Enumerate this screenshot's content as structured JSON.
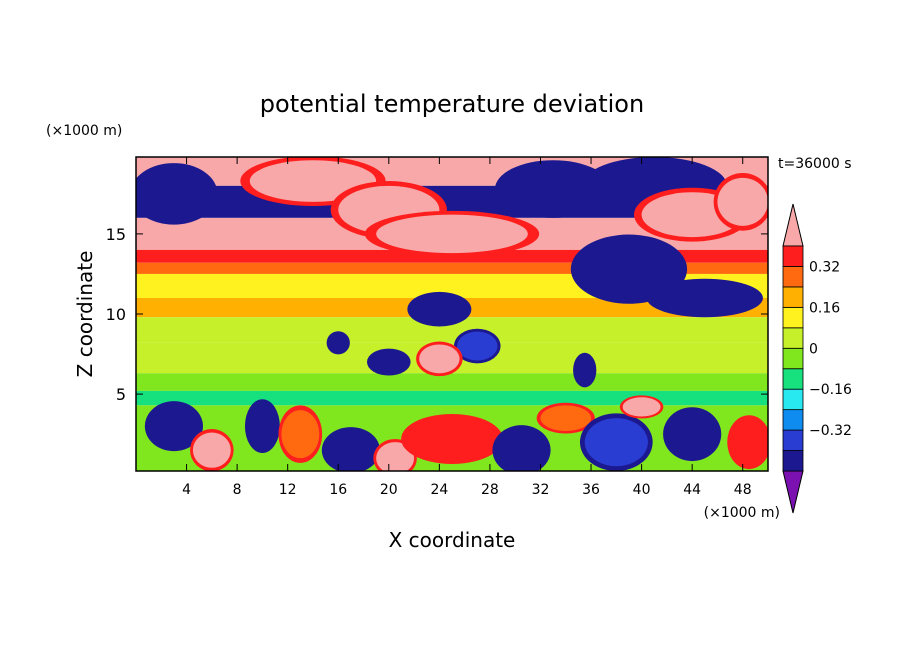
{
  "chart_data": {
    "type": "heatmap",
    "title": "potential temperature deviation",
    "xlabel": "X coordinate",
    "ylabel": "Z coordinate",
    "x_unit": "(×1000 m)",
    "y_unit": "(×1000 m)",
    "time_label": "t=36000 s",
    "xlim": [
      0,
      50
    ],
    "ylim": [
      0.2,
      19.8
    ],
    "x_ticks": [
      4,
      8,
      12,
      16,
      20,
      24,
      28,
      32,
      36,
      40,
      44,
      48
    ],
    "y_ticks": [
      5,
      10,
      15
    ],
    "grid": false,
    "colorbar": {
      "levels": [
        -0.48,
        -0.4,
        -0.32,
        -0.24,
        -0.16,
        -0.08,
        0,
        0.08,
        0.16,
        0.24,
        0.32,
        0.4
      ],
      "colors": [
        "#7b11b0",
        "#1c1890",
        "#2a3dd2",
        "#0f8cf0",
        "#28e8f0",
        "#17e07e",
        "#80e61e",
        "#c6f02a",
        "#fff21e",
        "#ffb000",
        "#ff6a10",
        "#ff1e1e",
        "#f8a8a8"
      ],
      "tick_labels": [
        "0.32",
        "0.16",
        "0",
        "−0.16",
        "−0.32"
      ],
      "tick_values": [
        0.32,
        0.16,
        0,
        -0.16,
        -0.32
      ],
      "extend": "both"
    },
    "layers": [
      {
        "zmin": 18.0,
        "zmax": 19.8,
        "value": 0.45
      },
      {
        "zmin": 16.0,
        "zmax": 18.0,
        "value": -0.45
      },
      {
        "zmin": 14.0,
        "zmax": 16.0,
        "value": 0.42
      },
      {
        "zmin": 13.2,
        "zmax": 14.0,
        "value": 0.36
      },
      {
        "zmin": 12.5,
        "zmax": 13.2,
        "value": 0.26
      },
      {
        "zmin": 11.0,
        "zmax": 12.5,
        "value": 0.15
      },
      {
        "zmin": 9.8,
        "zmax": 11.0,
        "value": 0.18
      },
      {
        "zmin": 8.2,
        "zmax": 9.8,
        "value": 0.06
      },
      {
        "zmin": 6.3,
        "zmax": 8.2,
        "value": 0.03
      },
      {
        "zmin": 5.2,
        "zmax": 6.3,
        "value": -0.02
      },
      {
        "zmin": 4.3,
        "zmax": 5.2,
        "value": -0.1
      },
      {
        "zmin": 0.2,
        "zmax": 4.3,
        "value": -0.06
      }
    ],
    "blobs": [
      {
        "x": 3,
        "z": 17.5,
        "rx": 3,
        "rz": 1.6,
        "value": -0.45
      },
      {
        "x": 14,
        "z": 18.3,
        "rx": 5,
        "rz": 1.3,
        "value": 0.42
      },
      {
        "x": 20,
        "z": 16.5,
        "rx": 4,
        "rz": 1.5,
        "value": 0.45
      },
      {
        "x": 25,
        "z": 15,
        "rx": 6,
        "rz": 1.2,
        "value": 0.45
      },
      {
        "x": 33,
        "z": 17.8,
        "rx": 4,
        "rz": 1.5,
        "value": -0.45
      },
      {
        "x": 41,
        "z": 18,
        "rx": 5,
        "rz": 1.5,
        "value": -0.45
      },
      {
        "x": 44,
        "z": 16.2,
        "rx": 4,
        "rz": 1.4,
        "value": 0.42
      },
      {
        "x": 48,
        "z": 17,
        "rx": 2,
        "rz": 1.5,
        "value": 0.45
      },
      {
        "x": 39,
        "z": 12.8,
        "rx": 4,
        "rz": 1.8,
        "value": -0.45
      },
      {
        "x": 45,
        "z": 11,
        "rx": 4,
        "rz": 1,
        "value": -0.45
      },
      {
        "x": 24,
        "z": 10.3,
        "rx": 2.2,
        "rz": 0.9,
        "value": -0.45
      },
      {
        "x": 27,
        "z": 8,
        "rx": 1.6,
        "rz": 0.9,
        "value": -0.4
      },
      {
        "x": 24,
        "z": 7.2,
        "rx": 1.6,
        "rz": 0.9,
        "value": 0.42
      },
      {
        "x": 20,
        "z": 7,
        "rx": 1.5,
        "rz": 0.7,
        "value": -0.45
      },
      {
        "x": 16,
        "z": 8.2,
        "rx": 0.8,
        "rz": 0.6,
        "value": -0.45
      },
      {
        "x": 35.5,
        "z": 6.5,
        "rx": 0.8,
        "rz": 0.9,
        "value": -0.45
      },
      {
        "x": 3,
        "z": 3,
        "rx": 2,
        "rz": 1.3,
        "value": -0.42
      },
      {
        "x": 6,
        "z": 1.5,
        "rx": 1.5,
        "rz": 1.1,
        "value": 0.42
      },
      {
        "x": 10,
        "z": 3,
        "rx": 1.2,
        "rz": 1.4,
        "value": -0.45
      },
      {
        "x": 13,
        "z": 2.5,
        "rx": 1.5,
        "rz": 1.5,
        "value": 0.3
      },
      {
        "x": 17,
        "z": 1.5,
        "rx": 2,
        "rz": 1.2,
        "value": -0.42
      },
      {
        "x": 20.5,
        "z": 1,
        "rx": 1.5,
        "rz": 1,
        "value": 0.45
      },
      {
        "x": 25,
        "z": 2.2,
        "rx": 3.5,
        "rz": 1.3,
        "value": 0.32
      },
      {
        "x": 30.5,
        "z": 1.5,
        "rx": 2,
        "rz": 1.3,
        "value": -0.45
      },
      {
        "x": 34,
        "z": 3.5,
        "rx": 2,
        "rz": 0.8,
        "value": 0.25
      },
      {
        "x": 38,
        "z": 2,
        "rx": 2.5,
        "rz": 1.5,
        "value": -0.35
      },
      {
        "x": 40,
        "z": 4.2,
        "rx": 1.5,
        "rz": 0.6,
        "value": 0.42
      },
      {
        "x": 44,
        "z": 2.5,
        "rx": 2,
        "rz": 1.4,
        "value": -0.42
      },
      {
        "x": 48.5,
        "z": 2,
        "rx": 1.5,
        "rz": 1.4,
        "value": 0.35
      }
    ]
  }
}
